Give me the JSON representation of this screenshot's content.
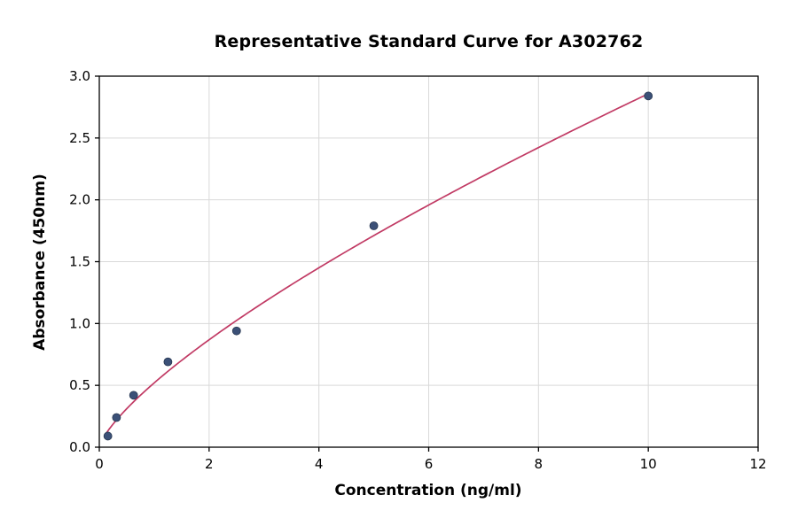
{
  "title": "Representative Standard Curve for A302762",
  "chart_data": {
    "type": "scatter",
    "title": "Representative Standard Curve for A302762",
    "xlabel": "Concentration (ng/ml)",
    "ylabel": "Absorbance (450nm)",
    "xlim": [
      0,
      12
    ],
    "ylim": [
      0,
      3.0
    ],
    "x_ticks": [
      0,
      2,
      4,
      6,
      8,
      10,
      12
    ],
    "x_tick_labels": [
      "0",
      "2",
      "4",
      "6",
      "8",
      "10",
      "12"
    ],
    "y_ticks": [
      0.0,
      0.5,
      1.0,
      1.5,
      2.0,
      2.5,
      3.0
    ],
    "y_tick_labels": [
      "0.0",
      "0.5",
      "1.0",
      "1.5",
      "2.0",
      "2.5",
      "3.0"
    ],
    "grid": true,
    "legend": "none",
    "points": [
      {
        "x": 0.156,
        "y": 0.09
      },
      {
        "x": 0.313,
        "y": 0.24
      },
      {
        "x": 0.625,
        "y": 0.42
      },
      {
        "x": 1.25,
        "y": 0.69
      },
      {
        "x": 2.5,
        "y": 0.94
      },
      {
        "x": 5,
        "y": 1.79
      },
      {
        "x": 10,
        "y": 2.84
      }
    ],
    "fit_curve": {
      "type": "power",
      "a": 0.52,
      "b": 0.74,
      "x_start": 0.12,
      "x_end": 10
    },
    "colors": {
      "point_fill": "#3b5077",
      "point_edge": "#273750",
      "curve": "#c13a64",
      "grid": "#d9d9d9",
      "axis": "#000000",
      "background": "#ffffff"
    }
  }
}
